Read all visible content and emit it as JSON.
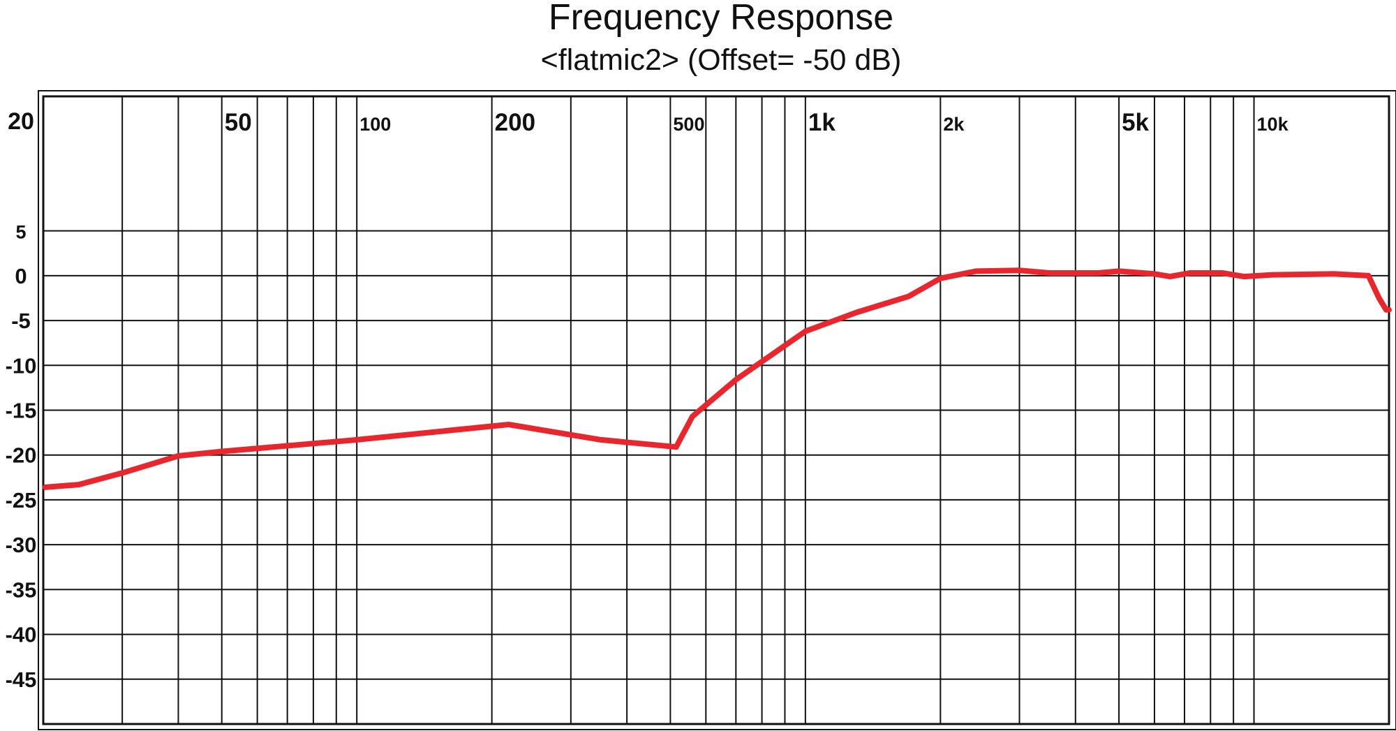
{
  "chart_data": {
    "type": "line",
    "title": "Frequency Response",
    "subtitle": "<flatmic2> (Offset= -50 dB)",
    "x_scale": "log",
    "xlim": [
      20,
      20000
    ],
    "ylim": [
      -50,
      20
    ],
    "grid": true,
    "line_color": "#e8262d",
    "x_tick_labels": [
      {
        "value": 50,
        "label": "50"
      },
      {
        "value": 100,
        "label": "100"
      },
      {
        "value": 200,
        "label": "200"
      },
      {
        "value": 500,
        "label": "500"
      },
      {
        "value": 1000,
        "label": "1k"
      },
      {
        "value": 2000,
        "label": "2k"
      },
      {
        "value": 5000,
        "label": "5k"
      },
      {
        "value": 10000,
        "label": "10k"
      }
    ],
    "x_gridlines": [
      30,
      40,
      50,
      60,
      70,
      80,
      90,
      100,
      200,
      300,
      400,
      500,
      600,
      700,
      800,
      900,
      1000,
      2000,
      3000,
      4000,
      5000,
      6000,
      7000,
      8000,
      9000,
      10000
    ],
    "y_tick_labels": [
      {
        "value": 20,
        "label": "20"
      },
      {
        "value": 5,
        "label": "5"
      },
      {
        "value": 0,
        "label": "0"
      },
      {
        "value": -5,
        "label": "-5"
      },
      {
        "value": -10,
        "label": "-10"
      },
      {
        "value": -15,
        "label": "-15"
      },
      {
        "value": -20,
        "label": "-20"
      },
      {
        "value": -25,
        "label": "-25"
      },
      {
        "value": -30,
        "label": "-30"
      },
      {
        "value": -35,
        "label": "-35"
      },
      {
        "value": -40,
        "label": "-40"
      },
      {
        "value": -45,
        "label": "-45"
      }
    ],
    "y_gridlines": [
      5,
      0,
      -5,
      -10,
      -15,
      -20,
      -25,
      -30,
      -35,
      -40,
      -45
    ],
    "series": [
      {
        "points": [
          [
            20.2,
            -23.6
          ],
          [
            24,
            -23.3
          ],
          [
            30,
            -22.0
          ],
          [
            40,
            -20.1
          ],
          [
            50,
            -19.6
          ],
          [
            100,
            -18.3
          ],
          [
            218,
            -16.6
          ],
          [
            350,
            -18.3
          ],
          [
            515,
            -19.1
          ],
          [
            560,
            -15.7
          ],
          [
            700,
            -11.6
          ],
          [
            1000,
            -6.2
          ],
          [
            1300,
            -4.1
          ],
          [
            1700,
            -2.3
          ],
          [
            2000,
            -0.3
          ],
          [
            2400,
            0.5
          ],
          [
            3000,
            0.6
          ],
          [
            3500,
            0.3
          ],
          [
            4500,
            0.3
          ],
          [
            5000,
            0.5
          ],
          [
            6000,
            0.2
          ],
          [
            6500,
            -0.1
          ],
          [
            7200,
            0.3
          ],
          [
            8500,
            0.3
          ],
          [
            9500,
            -0.1
          ],
          [
            11000,
            0.1
          ],
          [
            15000,
            0.2
          ],
          [
            18000,
            0.0
          ],
          [
            19000,
            -2.5
          ],
          [
            19700,
            -3.8
          ],
          [
            20000,
            -3.8
          ]
        ]
      }
    ]
  }
}
